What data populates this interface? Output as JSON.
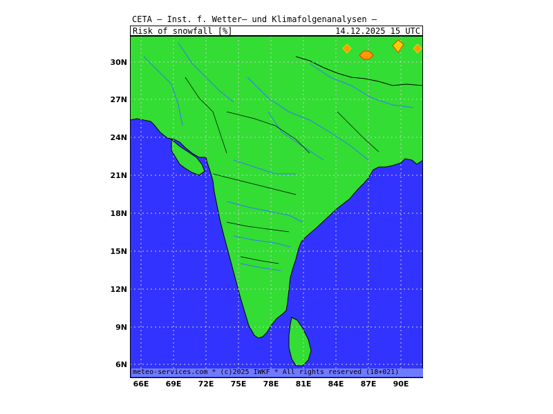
{
  "header": {
    "title": "CETA — Inst. f. Wetter— und Klimafolgenanalysen —",
    "parameter": "Risk_of_snowfall_[%]",
    "timestamp": "14.12.2025 15 UTC"
  },
  "map": {
    "region": "Indian subcontinent",
    "land_color": "#33dd33",
    "sea_color": "#3333ff",
    "river_color": "#3377ff",
    "border_color": "#000000",
    "snow_risk_colors": [
      "#ff9900",
      "#ffcc00",
      "#ff3300"
    ],
    "lat_labels": [
      "30N",
      "27N",
      "24N",
      "21N",
      "18N",
      "15N",
      "12N",
      "9N",
      "6N"
    ],
    "lon_labels": [
      "66E",
      "69E",
      "72E",
      "75E",
      "78E",
      "81E",
      "84E",
      "87E",
      "90E"
    ]
  },
  "footer": {
    "credit": "meteo-services.com * (c)2025 IWKF * All rights reserved (18+021)"
  }
}
